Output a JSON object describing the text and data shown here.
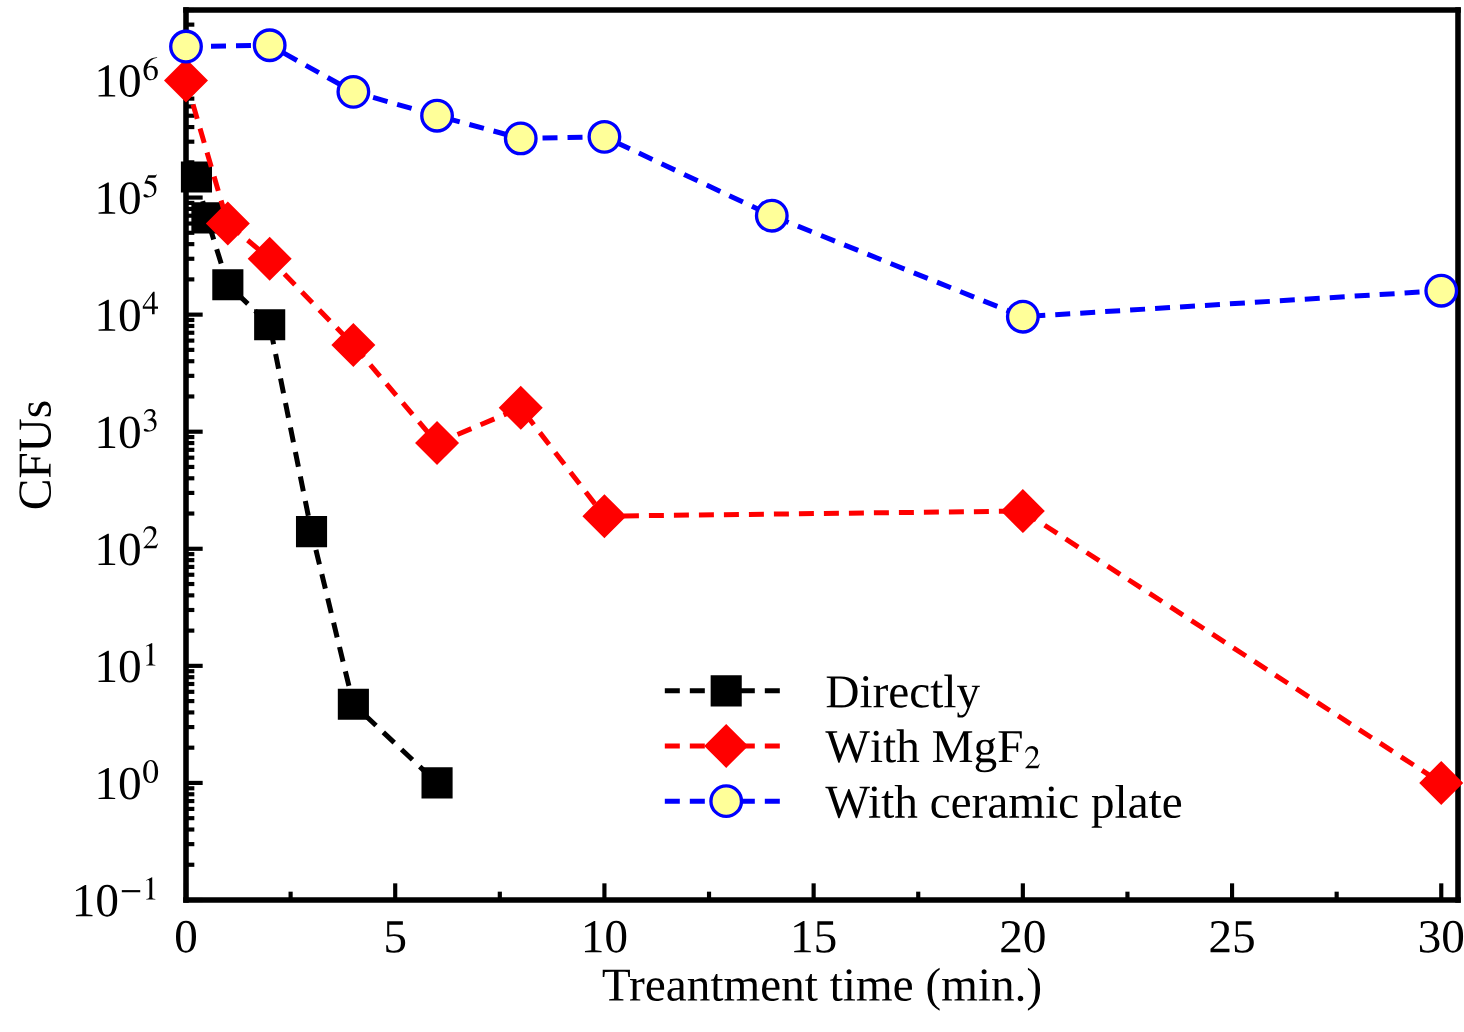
{
  "chart_data": {
    "type": "line",
    "xlabel": "Treantment time (min.)",
    "ylabel": "CFUs",
    "log": "y",
    "xlim": [
      0,
      30.4
    ],
    "xticks": [
      0,
      5,
      10,
      15,
      20,
      25,
      30
    ],
    "ylim": [
      0.1,
      4000000
    ],
    "yticks": [
      {
        "value": 0.1,
        "label": "10$^{−1}$"
      },
      {
        "value": 1,
        "label": "10$^{0}$"
      },
      {
        "value": 10,
        "label": "10$^{1}$"
      },
      {
        "value": 100,
        "label": "10$^{2}$"
      },
      {
        "value": 1000,
        "label": "10$^{3}$"
      },
      {
        "value": 10000,
        "label": "10$^{4}$"
      },
      {
        "value": 100000,
        "label": "10$^{5}$"
      },
      {
        "value": 1000000,
        "label": "10$^{6}$"
      }
    ],
    "grid": false,
    "legend": "bottom",
    "line_style": "dashed",
    "series": [
      {
        "name": "Directly",
        "color": "#000000",
        "marker": "square",
        "x": [
          0.25,
          0.5,
          1,
          2,
          3,
          4,
          6
        ],
        "values": [
          150000,
          67000,
          18000,
          8200,
          140,
          4.7,
          1
        ]
      },
      {
        "name": "With MgF$_{2}$",
        "color": "#ff0000",
        "marker": "diamond",
        "x": [
          0,
          1,
          2,
          4,
          6,
          8,
          10,
          20,
          30
        ],
        "values": [
          1000000,
          60000,
          30000,
          5500,
          800,
          1600,
          190,
          210,
          1
        ]
      },
      {
        "name": "With ceramic plate",
        "color": "#0000ff",
        "marker": "circle",
        "x": [
          0,
          2,
          4,
          6,
          8,
          10,
          14,
          20,
          30
        ],
        "values": [
          1950000,
          2000000,
          800000,
          500000,
          320000,
          330000,
          70000,
          9600,
          16000
        ]
      }
    ]
  }
}
